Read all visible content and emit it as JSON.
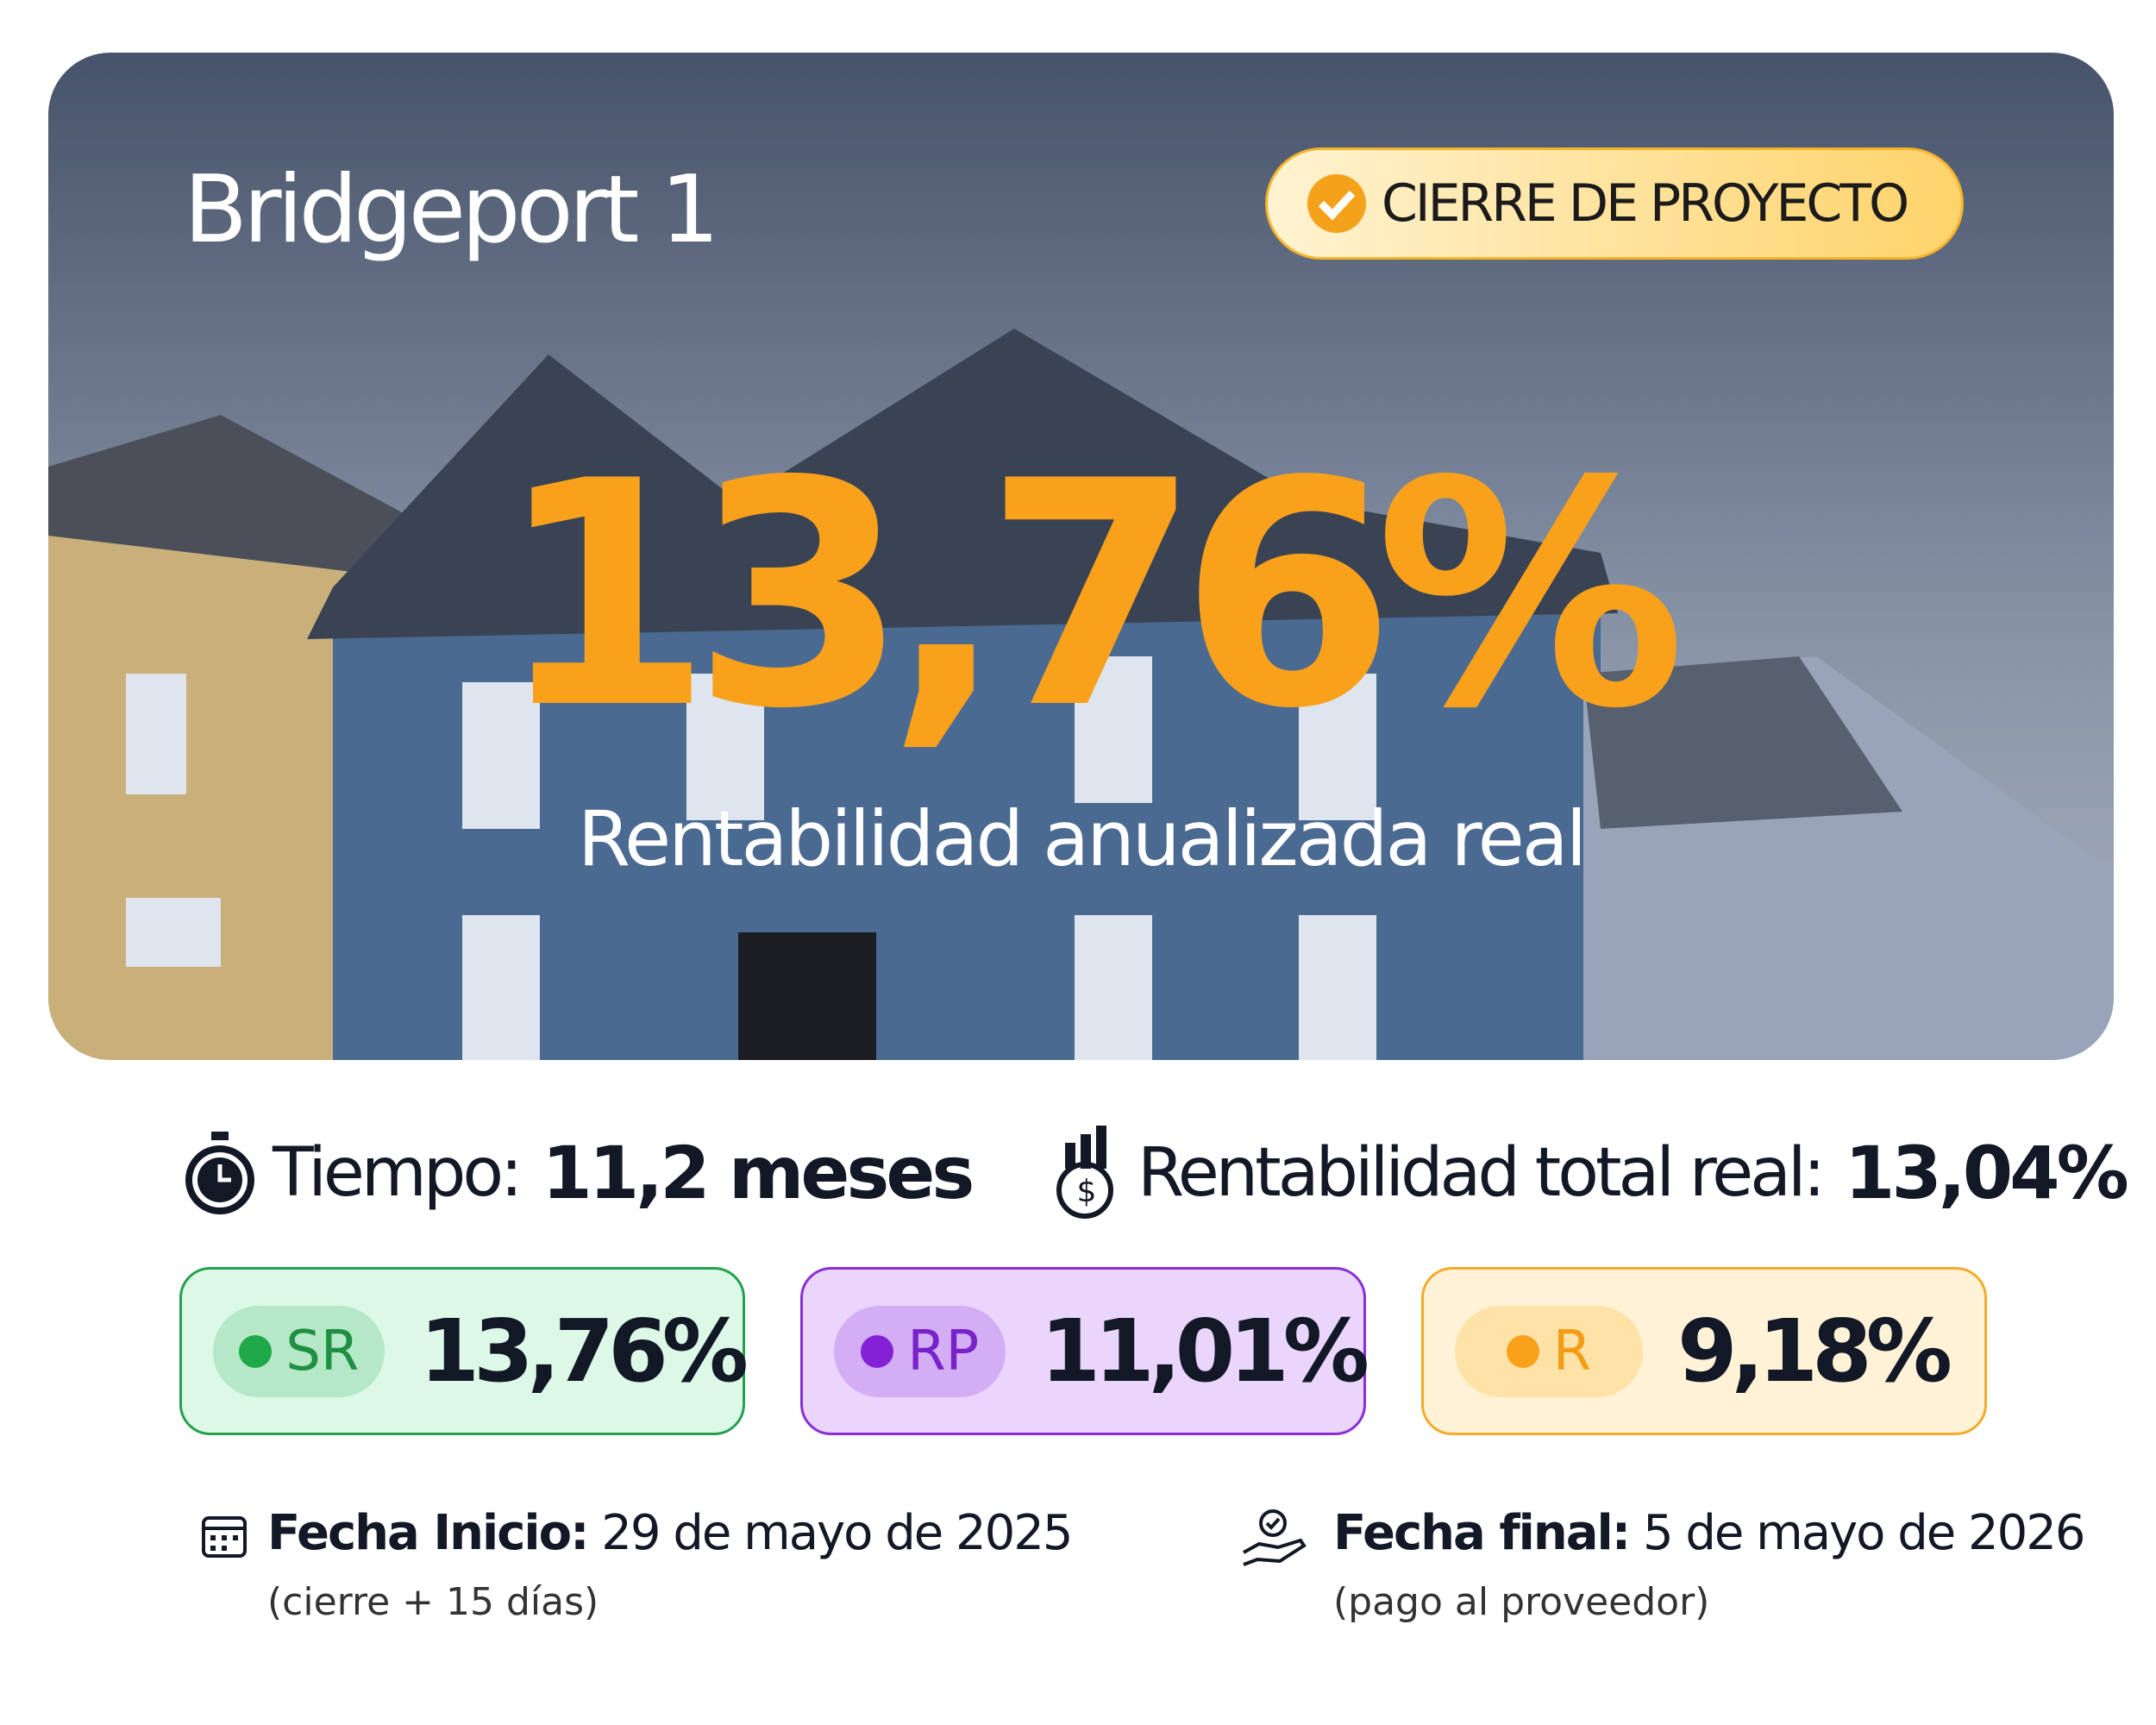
{
  "header": {
    "title": "Bridgeport 1",
    "badge": "CIERRE DE PROYECTO"
  },
  "headline": {
    "value": "13,76%",
    "label": "Rentabilidad anualizada real"
  },
  "stats": [
    {
      "label": "Tiempo:",
      "value": "11,2 meses"
    },
    {
      "label": "Rentabilidad total real:",
      "value": "13,04%"
    }
  ],
  "tiers": [
    {
      "name": "SR",
      "value": "13,76%"
    },
    {
      "name": "RP",
      "value": "11,01%"
    },
    {
      "name": "R",
      "value": "9,18%"
    }
  ],
  "dates": [
    {
      "label": "Fecha Inicio:",
      "value": "29 de mayo de 2025",
      "note": "(cierre + 15 días)"
    },
    {
      "label": "Fecha final:",
      "value": "5 de mayo de 2026",
      "note": "(pago al proveedor)"
    }
  ]
}
